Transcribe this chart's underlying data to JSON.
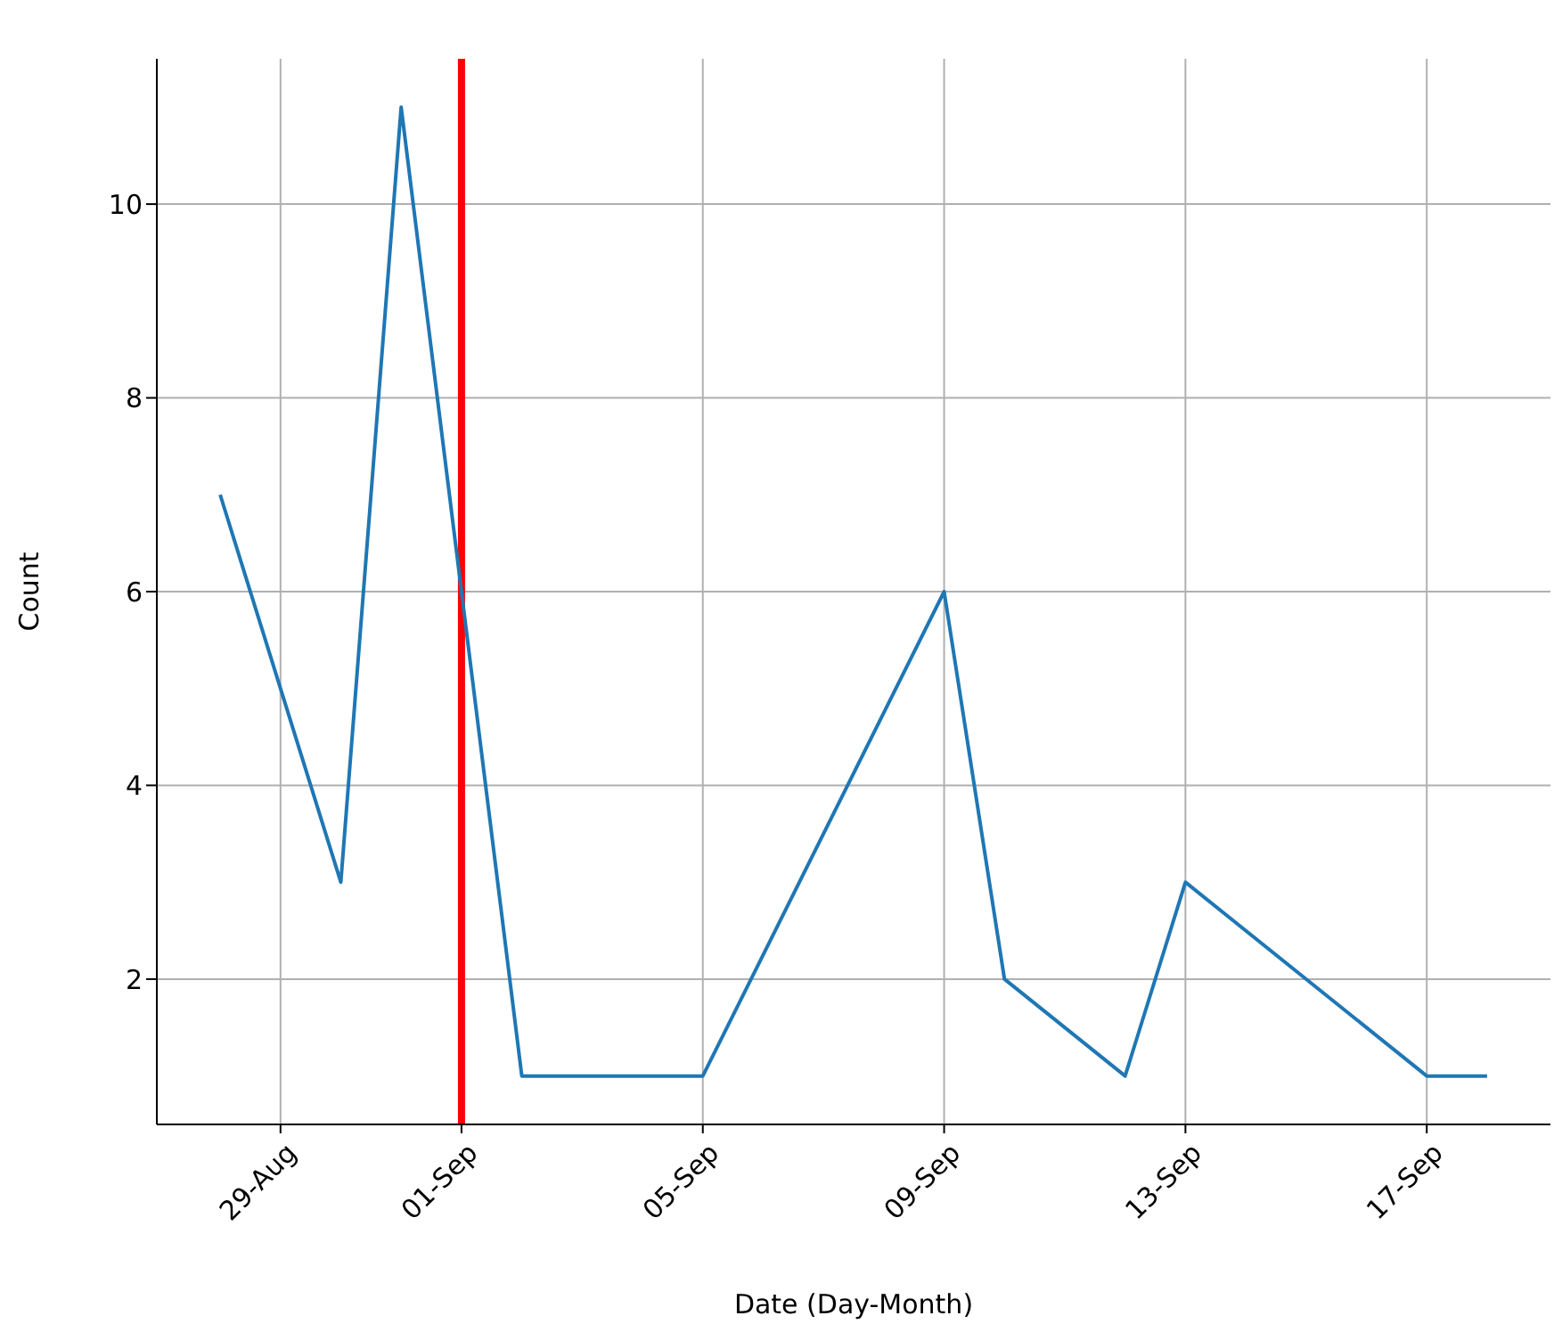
{
  "chart_data": {
    "type": "line",
    "xlabel": "Date (Day-Month)",
    "ylabel": "Count",
    "x": [
      "--08-28",
      "--08-30",
      "--08-31",
      "--09-02",
      "--09-05",
      "--09-09",
      "--09-10",
      "--09-12",
      "--09-13",
      "--09-17",
      "--09-18"
    ],
    "series": [
      {
        "color": "#1f77b4",
        "values": [
          7,
          3,
          11,
          1,
          1,
          6,
          2,
          1,
          3,
          1,
          1
        ]
      }
    ],
    "xlim": [
      "--08-26T22:48",
      "--09-19T01:12"
    ],
    "xticks": [
      {
        "value": "--08-29",
        "label": "29-Aug"
      },
      {
        "value": "--09-01",
        "label": "01-Sep"
      },
      {
        "value": "--09-05",
        "label": "05-Sep"
      },
      {
        "value": "--09-09",
        "label": "09-Sep"
      },
      {
        "value": "--09-13",
        "label": "13-Sep"
      },
      {
        "value": "--09-17",
        "label": "17-Sep"
      }
    ],
    "ylim": [
      0.5,
      11.5
    ],
    "yticks": [
      2,
      4,
      6,
      8,
      10
    ],
    "ref_lines": [
      {
        "axis": "x",
        "value": "--09-01",
        "color": "#ff0000"
      }
    ],
    "grid": true,
    "marker": "none",
    "line_style": "solid"
  }
}
